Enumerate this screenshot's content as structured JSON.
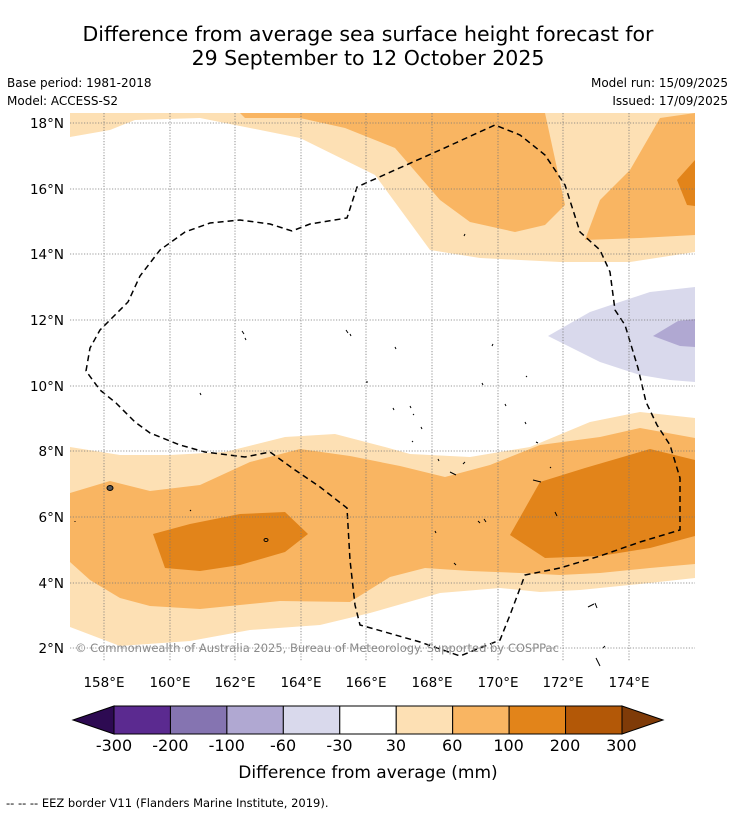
{
  "title_line1": "Difference from average sea surface height forecast for",
  "title_line2": "29 September to 12 October 2025",
  "meta": {
    "base_period": "Base period: 1981-2018",
    "model": "Model: ACCESS-S2",
    "model_run": "Model run: 15/09/2025",
    "issued": "Issued: 17/09/2025"
  },
  "map": {
    "lon_ticks": [
      "158°E",
      "160°E",
      "162°E",
      "164°E",
      "166°E",
      "168°E",
      "170°E",
      "172°E",
      "174°E"
    ],
    "lat_ticks": [
      "18°N",
      "16°N",
      "14°N",
      "12°N",
      "10°N",
      "8°N",
      "6°N",
      "4°N",
      "2°N"
    ],
    "copyright": "© Commonwealth of Australia 2025, Bureau of Meteorology. Supported by COSPPac"
  },
  "colorbar": {
    "ticks": [
      "-300",
      "-200",
      "-100",
      "-60",
      "-30",
      "30",
      "60",
      "100",
      "200",
      "300"
    ],
    "colors": [
      "#2d0a52",
      "#5b2a90",
      "#8574b1",
      "#b0a8d2",
      "#d9d9ec",
      "#ffffff",
      "#fde0b4",
      "#f9b562",
      "#e2841a",
      "#b35807",
      "#7f3b08"
    ],
    "label": "Difference from average (mm)"
  },
  "footer": "--  --  -- EEZ border V11 (Flanders Marine Institute, 2019)."
}
